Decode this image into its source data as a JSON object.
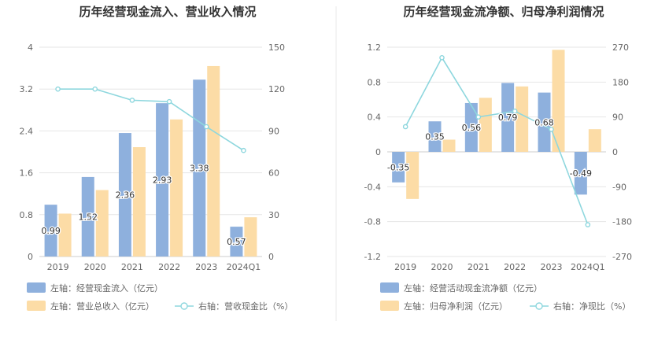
{
  "colors": {
    "bar_primary": "#8eb0dd",
    "bar_secondary": "#fcdca6",
    "line": "#8ed7de",
    "grid": "#e6e6e6",
    "axis_text": "#666666",
    "title_text": "#333333",
    "divider": "#e8e8e8"
  },
  "chart_data": [
    {
      "type": "bar",
      "title": "历年经营现金流入、营业收入情况",
      "categories": [
        "2019",
        "2020",
        "2021",
        "2022",
        "2023",
        "2024Q1"
      ],
      "ylim_left": [
        0,
        4
      ],
      "left_ticks": [
        "0",
        "0.8",
        "1.6",
        "2.4",
        "3.2",
        "4"
      ],
      "ylim_right": [
        0,
        150
      ],
      "right_ticks": [
        "0",
        "30",
        "60",
        "90",
        "120",
        "150"
      ],
      "series": [
        {
          "name": "左轴：经营现金流入（亿元）",
          "axis": "left",
          "kind": "bar",
          "color": "#8eb0dd",
          "values": [
            0.99,
            1.52,
            2.36,
            2.93,
            3.38,
            0.57
          ],
          "labels": [
            "0.99",
            "1.52",
            "2.36",
            "2.93",
            "3.38",
            "0.57"
          ]
        },
        {
          "name": "左轴：营业总收入（亿元）",
          "axis": "left",
          "kind": "bar",
          "color": "#fcdca6",
          "values": [
            0.82,
            1.27,
            2.09,
            2.62,
            3.64,
            0.75
          ]
        },
        {
          "name": "右轴：营收现金比（%）",
          "axis": "right",
          "kind": "line",
          "color": "#8ed7de",
          "values": [
            120,
            120,
            112,
            111,
            93,
            76
          ]
        }
      ],
      "legend": [
        {
          "label": "左轴：经营现金流入（亿元）",
          "kind": "bar",
          "color": "#8eb0dd"
        },
        {
          "label": "左轴：营业总收入（亿元）",
          "kind": "bar",
          "color": "#fcdca6"
        },
        {
          "label": "右轴：营收现金比（%）",
          "kind": "line",
          "color": "#8ed7de"
        }
      ]
    },
    {
      "type": "bar",
      "title": "历年经营现金流净额、归母净利润情况",
      "categories": [
        "2019",
        "2020",
        "2021",
        "2022",
        "2023",
        "2024Q1"
      ],
      "ylim_left": [
        -1.2,
        1.2
      ],
      "left_ticks": [
        "-1.2",
        "-0.8",
        "-0.4",
        "0",
        "0.4",
        "0.8",
        "1.2"
      ],
      "ylim_right": [
        -270,
        270
      ],
      "right_ticks": [
        "-270",
        "-180",
        "-90",
        "0",
        "90",
        "180",
        "270"
      ],
      "series": [
        {
          "name": "左轴：经营活动现金流净额（亿元）",
          "axis": "left",
          "kind": "bar",
          "color": "#8eb0dd",
          "values": [
            -0.35,
            0.35,
            0.56,
            0.79,
            0.68,
            -0.49
          ],
          "labels": [
            "-0.35",
            "0.35",
            "0.56",
            "0.79",
            "0.68",
            "-0.49"
          ]
        },
        {
          "name": "左轴：归母净利润（亿元）",
          "axis": "left",
          "kind": "bar",
          "color": "#fcdca6",
          "values": [
            -0.54,
            0.14,
            0.62,
            0.75,
            1.17,
            0.26
          ]
        },
        {
          "name": "右轴：净现比（%）",
          "axis": "right",
          "kind": "line",
          "color": "#8ed7de",
          "values": [
            65,
            243,
            90,
            105,
            58,
            -188
          ]
        }
      ],
      "legend": [
        {
          "label": "左轴：经营活动现金流净额（亿元）",
          "kind": "bar",
          "color": "#8eb0dd"
        },
        {
          "label": "左轴：归母净利润（亿元）",
          "kind": "bar",
          "color": "#fcdca6"
        },
        {
          "label": "右轴：净现比（%）",
          "kind": "line",
          "color": "#8ed7de"
        }
      ]
    }
  ]
}
